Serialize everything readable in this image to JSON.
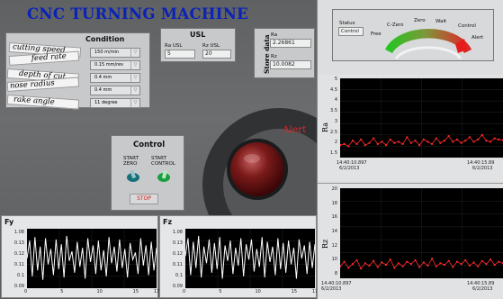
{
  "app": {
    "title": "CNC TURNING MACHINE"
  },
  "condition": {
    "header": "Condition",
    "rows": [
      {
        "label": "cutting speed",
        "value": "150 m/min"
      },
      {
        "label": "feed rate",
        "value": "0.15 mm/rev"
      },
      {
        "label": "depth of cut",
        "value": "0.4 mm"
      },
      {
        "label": "nose radius",
        "value": "0.4 mm"
      },
      {
        "label": "rake angle",
        "value": "11 degree"
      }
    ],
    "arrow": "▽"
  },
  "usl": {
    "header": "USL",
    "ra_label": "Ra USL",
    "ra_value": "5",
    "rz_label": "Rz USL",
    "rz_value": "20"
  },
  "store": {
    "header": "Store data",
    "ra_label": "Ra",
    "ra_value": "2.26861",
    "rz_label": "Rz",
    "rz_value": "10.0082"
  },
  "alert": {
    "label": "Alert"
  },
  "control": {
    "header": "Control",
    "start_zero": "START ZERO",
    "start_control": "START CONTROL",
    "stop": "STOP"
  },
  "status": {
    "label": "Status",
    "value": "Control",
    "gauge_labels": [
      "Free",
      "C-Zero",
      "Zero",
      "Wait",
      "Control",
      "Alert"
    ]
  },
  "charts": {
    "fy": {
      "title": "Fy",
      "y_ticks": [
        "1.08",
        "0.13",
        "0.12",
        "0.11",
        "0.1",
        "0.09"
      ],
      "x_ticks": [
        "0",
        "5",
        "10",
        "15",
        "17.899"
      ]
    },
    "fz": {
      "title": "Fz",
      "y_ticks": [
        "1.08",
        "0.13",
        "0.12",
        "0.11",
        "0.1",
        "0.09"
      ],
      "x_ticks": [
        "0",
        "5",
        "10",
        "15",
        "17.899"
      ]
    },
    "ra": {
      "axis_label": "Ra",
      "y_ticks": [
        "5",
        "4.5",
        "4",
        "3.5",
        "3",
        "2.5",
        "2",
        "1.5"
      ],
      "x_left_time": "14:40:10.897",
      "x_left_date": "6/2/2013",
      "x_right_time": "14:40:15.89",
      "x_right_date": "6/2/2013"
    },
    "rz": {
      "axis_label": "Rz",
      "y_ticks": [
        "20",
        "18",
        "16",
        "14",
        "12",
        "10",
        "8"
      ],
      "x_left_time": "14:40:10.897",
      "x_left_date": "6/2/2013",
      "x_right_time": "14:40:15.89",
      "x_right_date": "6/2/2013"
    }
  },
  "colors": {
    "title": "#0a22b8",
    "alert": "#e0262b",
    "trace_red": "#ff2a2a",
    "trace_white": "#ffffff",
    "plot_bg": "#000000"
  },
  "chart_data": [
    {
      "type": "line",
      "ylabel": "Ra",
      "ylim": [
        1.5,
        5
      ],
      "series": [
        {
          "values": [
            2.05,
            2.1,
            2.0,
            2.25,
            2.1,
            2.3,
            2.05,
            2.15,
            2.35,
            2.1,
            2.2,
            2.05,
            2.3,
            2.15,
            2.2,
            2.1,
            2.4,
            2.15,
            2.25,
            2.05,
            2.3,
            2.2,
            2.1,
            2.35,
            2.15,
            2.25,
            2.45,
            2.2,
            2.3,
            2.15,
            2.25,
            2.4,
            2.2,
            2.3,
            2.5,
            2.25,
            2.2,
            2.35,
            2.3,
            2.27
          ]
        }
      ]
    },
    {
      "type": "line",
      "ylabel": "Rz",
      "ylim": [
        8,
        20
      ],
      "series": [
        {
          "values": [
            9.6,
            10.2,
            9.4,
            9.9,
            10.4,
            9.3,
            10.0,
            9.7,
            10.3,
            9.5,
            10.1,
            9.8,
            10.5,
            9.4,
            10.0,
            9.6,
            10.2,
            9.9,
            10.4,
            9.5,
            10.1,
            9.7,
            10.6,
            9.6,
            10.0,
            9.8,
            10.3,
            9.5,
            10.2,
            9.9,
            10.4,
            9.7,
            10.1,
            9.6,
            10.3,
            9.9,
            10.5,
            9.8,
            10.2,
            10.0
          ]
        }
      ]
    },
    {
      "type": "line",
      "title": "Fy",
      "xlim": [
        0,
        17.899
      ],
      "series": [
        {
          "values": [
            0.11,
            0.125,
            0.095,
            0.128,
            0.1,
            0.12,
            0.092,
            0.127,
            0.105,
            0.118,
            0.096,
            0.126,
            0.101,
            0.122,
            0.094,
            0.129,
            0.108,
            0.116,
            0.098,
            0.124,
            0.103,
            0.119,
            0.093,
            0.127,
            0.107,
            0.121,
            0.097,
            0.125,
            0.1,
            0.117,
            0.095,
            0.128,
            0.106,
            0.12,
            0.099,
            0.126,
            0.102,
            0.118,
            0.094,
            0.123,
            0.109,
            0.115,
            0.097,
            0.127,
            0.104,
            0.121,
            0.096,
            0.124,
            0.1,
            0.119
          ]
        }
      ]
    },
    {
      "type": "line",
      "title": "Fz",
      "xlim": [
        0,
        17.899
      ],
      "series": [
        {
          "values": [
            0.112,
            0.127,
            0.096,
            0.124,
            0.102,
            0.129,
            0.094,
            0.12,
            0.106,
            0.126,
            0.098,
            0.123,
            0.101,
            0.128,
            0.093,
            0.121,
            0.108,
            0.125,
            0.097,
            0.119,
            0.104,
            0.127,
            0.095,
            0.122,
            0.109,
            0.126,
            0.099,
            0.118,
            0.103,
            0.128,
            0.094,
            0.124,
            0.107,
            0.12,
            0.096,
            0.127,
            0.101,
            0.123,
            0.098,
            0.125,
            0.105,
            0.119,
            0.093,
            0.126,
            0.11,
            0.121,
            0.097,
            0.124,
            0.102,
            0.122
          ]
        }
      ]
    }
  ]
}
